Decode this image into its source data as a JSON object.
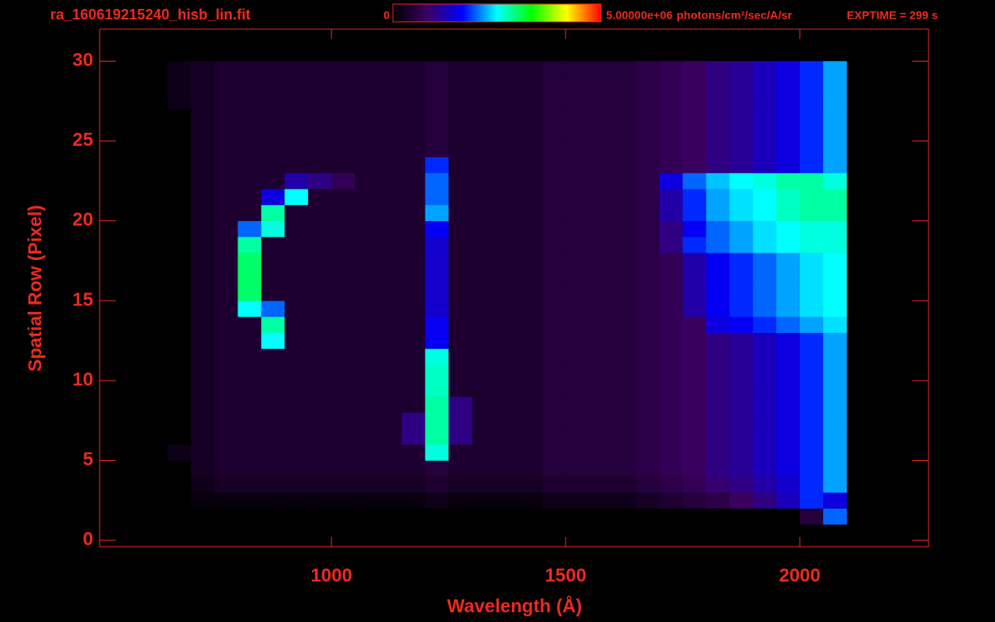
{
  "chart_data": {
    "type": "heatmap",
    "title": "ra_160619215240_hisb_lin.fit",
    "annotation": "EXPTIME = 299 s",
    "x_label": "Wavelength (Å)",
    "y_label": "Spatial Row (Pixel)",
    "colorbar_unit": "photons/cm²/sec/A/sr",
    "zlim": [
      0,
      5000000
    ],
    "zticks": [
      0,
      {
        "value": 5000000,
        "label": "5.00000e+06"
      }
    ],
    "colormap": [
      "#000000",
      "#3c0064",
      "#0000ff",
      "#00ffff",
      "#00ff00",
      "#ffff00",
      "#ff0000"
    ],
    "xlim": [
      505,
      2275
    ],
    "xticks": [
      1000,
      1500,
      2000
    ],
    "ylim": [
      -0.4,
      32
    ],
    "yticks": [
      0,
      5,
      10,
      15,
      20,
      25,
      30
    ],
    "xbins": [
      650,
      700,
      750,
      800,
      850,
      900,
      950,
      1000,
      1050,
      1100,
      1150,
      1200,
      1250,
      1300,
      1350,
      1400,
      1450,
      1500,
      1550,
      1600,
      1650,
      1700,
      1750,
      1800,
      1850,
      1900,
      1950,
      2000,
      2050,
      2100
    ],
    "ybins": [
      1,
      2,
      3,
      4,
      5,
      6,
      7,
      8,
      9,
      10,
      11,
      12,
      13,
      14,
      15,
      16,
      17,
      18,
      19,
      20,
      21,
      22,
      23,
      24,
      25,
      26,
      27,
      28,
      29,
      30
    ],
    "z": [
      [
        0,
        0,
        0,
        0,
        0,
        0,
        0,
        0,
        0,
        0,
        0,
        0,
        0,
        0,
        0,
        0,
        0,
        0,
        0,
        0,
        0,
        0,
        0,
        0,
        0,
        0,
        0,
        500000.0,
        2000000.0
      ],
      [
        0,
        100000.0,
        100000.0,
        100000.0,
        100000.0,
        100000.0,
        100000.0,
        100000.0,
        100000.0,
        100000.0,
        100000.0,
        200000.0,
        100000.0,
        100000.0,
        100000.0,
        100000.0,
        200000.0,
        200000.0,
        200000.0,
        200000.0,
        300000.0,
        400000.0,
        500000.0,
        600000.0,
        800000.0,
        1000000.0,
        1300000.0,
        1800000.0,
        1500000.0
      ],
      [
        0,
        200000.0,
        300000.0,
        300000.0,
        300000.0,
        300000.0,
        300000.0,
        300000.0,
        300000.0,
        300000.0,
        300000.0,
        400000.0,
        300000.0,
        300000.0,
        300000.0,
        300000.0,
        400000.0,
        400000.0,
        400000.0,
        400000.0,
        500000.0,
        600000.0,
        700000.0,
        900000.0,
        1000000.0,
        1200000.0,
        1400000.0,
        1800000.0,
        2200000.0
      ],
      [
        0,
        300000.0,
        400000.0,
        400000.0,
        400000.0,
        400000.0,
        400000.0,
        400000.0,
        400000.0,
        400000.0,
        400000.0,
        500000.0,
        400000.0,
        400000.0,
        400000.0,
        400000.0,
        500000.0,
        500000.0,
        500000.0,
        500000.0,
        600000.0,
        700000.0,
        800000.0,
        1000000.0,
        1100000.0,
        1300000.0,
        1500000.0,
        1800000.0,
        2200000.0
      ],
      [
        200000.0,
        300000.0,
        400000.0,
        400000.0,
        400000.0,
        400000.0,
        400000.0,
        400000.0,
        400000.0,
        400000.0,
        400000.0,
        2600000.0,
        400000.0,
        400000.0,
        400000.0,
        400000.0,
        500000.0,
        500000.0,
        500000.0,
        500000.0,
        600000.0,
        700000.0,
        800000.0,
        1000000.0,
        1100000.0,
        1300000.0,
        1500000.0,
        1800000.0,
        2200000.0
      ],
      [
        0,
        300000.0,
        400000.0,
        400000.0,
        400000.0,
        400000.0,
        400000.0,
        400000.0,
        400000.0,
        400000.0,
        1000000.0,
        2800000.0,
        1000000.0,
        400000.0,
        400000.0,
        400000.0,
        500000.0,
        500000.0,
        500000.0,
        500000.0,
        600000.0,
        700000.0,
        800000.0,
        1000000.0,
        1100000.0,
        1300000.0,
        1500000.0,
        1800000.0,
        2200000.0
      ],
      [
        0,
        300000.0,
        400000.0,
        400000.0,
        400000.0,
        400000.0,
        400000.0,
        400000.0,
        400000.0,
        400000.0,
        1000000.0,
        2800000.0,
        1000000.0,
        400000.0,
        400000.0,
        400000.0,
        500000.0,
        500000.0,
        500000.0,
        500000.0,
        600000.0,
        700000.0,
        800000.0,
        1000000.0,
        1100000.0,
        1300000.0,
        1500000.0,
        1800000.0,
        2200000.0
      ],
      [
        0,
        300000.0,
        400000.0,
        400000.0,
        400000.0,
        400000.0,
        400000.0,
        400000.0,
        400000.0,
        400000.0,
        400000.0,
        2800000.0,
        1000000.0,
        400000.0,
        400000.0,
        400000.0,
        500000.0,
        500000.0,
        500000.0,
        500000.0,
        600000.0,
        700000.0,
        800000.0,
        1000000.0,
        1100000.0,
        1300000.0,
        1500000.0,
        1800000.0,
        2200000.0
      ],
      [
        0,
        300000.0,
        400000.0,
        400000.0,
        400000.0,
        400000.0,
        400000.0,
        400000.0,
        400000.0,
        400000.0,
        400000.0,
        2700000.0,
        400000.0,
        400000.0,
        400000.0,
        400000.0,
        500000.0,
        500000.0,
        500000.0,
        500000.0,
        600000.0,
        700000.0,
        800000.0,
        1000000.0,
        1100000.0,
        1300000.0,
        1500000.0,
        1800000.0,
        2200000.0
      ],
      [
        0,
        300000.0,
        400000.0,
        400000.0,
        400000.0,
        400000.0,
        400000.0,
        400000.0,
        400000.0,
        400000.0,
        400000.0,
        2700000.0,
        400000.0,
        400000.0,
        400000.0,
        400000.0,
        500000.0,
        500000.0,
        500000.0,
        500000.0,
        600000.0,
        700000.0,
        800000.0,
        1000000.0,
        1100000.0,
        1300000.0,
        1500000.0,
        1800000.0,
        2200000.0
      ],
      [
        0,
        300000.0,
        400000.0,
        400000.0,
        400000.0,
        400000.0,
        400000.0,
        400000.0,
        400000.0,
        400000.0,
        400000.0,
        2600000.0,
        400000.0,
        400000.0,
        400000.0,
        400000.0,
        500000.0,
        500000.0,
        500000.0,
        500000.0,
        600000.0,
        700000.0,
        800000.0,
        1000000.0,
        1100000.0,
        1300000.0,
        1500000.0,
        1800000.0,
        2200000.0
      ],
      [
        0,
        300000.0,
        400000.0,
        400000.0,
        2500000.0,
        400000.0,
        400000.0,
        400000.0,
        400000.0,
        400000.0,
        400000.0,
        1600000.0,
        400000.0,
        400000.0,
        400000.0,
        400000.0,
        500000.0,
        500000.0,
        500000.0,
        500000.0,
        600000.0,
        700000.0,
        800000.0,
        1000000.0,
        1100000.0,
        1300000.0,
        1500000.0,
        1800000.0,
        2200000.0
      ],
      [
        0,
        300000.0,
        400000.0,
        400000.0,
        2800000.0,
        400000.0,
        400000.0,
        400000.0,
        400000.0,
        400000.0,
        400000.0,
        1600000.0,
        400000.0,
        400000.0,
        400000.0,
        400000.0,
        500000.0,
        500000.0,
        500000.0,
        500000.0,
        600000.0,
        700000.0,
        800000.0,
        1500000.0,
        1600000.0,
        1800000.0,
        2000000.0,
        2200000.0,
        2400000.0
      ],
      [
        0,
        300000.0,
        400000.0,
        2500000.0,
        2000000.0,
        400000.0,
        400000.0,
        400000.0,
        400000.0,
        400000.0,
        400000.0,
        1400000.0,
        400000.0,
        400000.0,
        400000.0,
        400000.0,
        500000.0,
        500000.0,
        500000.0,
        500000.0,
        600000.0,
        700000.0,
        1200000.0,
        1600000.0,
        1800000.0,
        2000000.0,
        2200000.0,
        2400000.0,
        2500000.0
      ],
      [
        0,
        300000.0,
        400000.0,
        3000000.0,
        400000.0,
        400000.0,
        400000.0,
        400000.0,
        400000.0,
        400000.0,
        400000.0,
        1400000.0,
        400000.0,
        400000.0,
        400000.0,
        400000.0,
        500000.0,
        500000.0,
        500000.0,
        500000.0,
        600000.0,
        700000.0,
        1200000.0,
        1600000.0,
        1800000.0,
        2000000.0,
        2200000.0,
        2400000.0,
        2500000.0
      ],
      [
        0,
        300000.0,
        400000.0,
        3000000.0,
        400000.0,
        400000.0,
        400000.0,
        400000.0,
        400000.0,
        400000.0,
        400000.0,
        1400000.0,
        400000.0,
        400000.0,
        400000.0,
        400000.0,
        500000.0,
        500000.0,
        500000.0,
        500000.0,
        600000.0,
        700000.0,
        1200000.0,
        1600000.0,
        1800000.0,
        2000000.0,
        2200000.0,
        2400000.0,
        2500000.0
      ],
      [
        0,
        300000.0,
        400000.0,
        3000000.0,
        400000.0,
        400000.0,
        400000.0,
        400000.0,
        400000.0,
        400000.0,
        400000.0,
        1400000.0,
        400000.0,
        400000.0,
        400000.0,
        400000.0,
        500000.0,
        500000.0,
        500000.0,
        500000.0,
        600000.0,
        700000.0,
        1200000.0,
        1600000.0,
        1800000.0,
        2000000.0,
        2200000.0,
        2400000.0,
        2500000.0
      ],
      [
        0,
        300000.0,
        400000.0,
        2800000.0,
        400000.0,
        400000.0,
        400000.0,
        400000.0,
        400000.0,
        400000.0,
        400000.0,
        1400000.0,
        400000.0,
        400000.0,
        400000.0,
        400000.0,
        500000.0,
        500000.0,
        500000.0,
        500000.0,
        600000.0,
        1000000.0,
        1800000.0,
        2000000.0,
        2200000.0,
        2400000.0,
        2500000.0,
        2600000.0,
        2600000.0
      ],
      [
        0,
        300000.0,
        400000.0,
        2000000.0,
        2600000.0,
        400000.0,
        400000.0,
        400000.0,
        400000.0,
        400000.0,
        400000.0,
        1600000.0,
        400000.0,
        400000.0,
        400000.0,
        400000.0,
        500000.0,
        500000.0,
        500000.0,
        500000.0,
        600000.0,
        1000000.0,
        1600000.0,
        2000000.0,
        2200000.0,
        2400000.0,
        2500000.0,
        2600000.0,
        2600000.0
      ],
      [
        0,
        300000.0,
        400000.0,
        400000.0,
        2800000.0,
        400000.0,
        400000.0,
        400000.0,
        400000.0,
        400000.0,
        400000.0,
        2200000.0,
        400000.0,
        400000.0,
        400000.0,
        400000.0,
        500000.0,
        500000.0,
        500000.0,
        500000.0,
        600000.0,
        1200000.0,
        1800000.0,
        2200000.0,
        2400000.0,
        2500000.0,
        2700000.0,
        2800000.0,
        2800000.0
      ],
      [
        0,
        300000.0,
        400000.0,
        400000.0,
        1500000.0,
        2500000.0,
        400000.0,
        400000.0,
        400000.0,
        400000.0,
        400000.0,
        2000000.0,
        400000.0,
        400000.0,
        400000.0,
        400000.0,
        500000.0,
        500000.0,
        500000.0,
        500000.0,
        600000.0,
        1200000.0,
        1800000.0,
        2200000.0,
        2400000.0,
        2500000.0,
        2700000.0,
        2800000.0,
        2800000.0
      ],
      [
        0,
        300000.0,
        400000.0,
        400000.0,
        400000.0,
        1200000.0,
        1000000.0,
        700000.0,
        400000.0,
        400000.0,
        400000.0,
        2000000.0,
        400000.0,
        400000.0,
        400000.0,
        400000.0,
        500000.0,
        500000.0,
        500000.0,
        500000.0,
        600000.0,
        1500000.0,
        2000000.0,
        2300000.0,
        2500000.0,
        2600000.0,
        2800000.0,
        2800000.0,
        2600000.0
      ],
      [
        0,
        300000.0,
        400000.0,
        400000.0,
        400000.0,
        400000.0,
        400000.0,
        400000.0,
        400000.0,
        400000.0,
        400000.0,
        1800000.0,
        400000.0,
        400000.0,
        400000.0,
        400000.0,
        500000.0,
        500000.0,
        500000.0,
        500000.0,
        600000.0,
        700000.0,
        800000.0,
        1000000.0,
        1100000.0,
        1300000.0,
        1500000.0,
        1800000.0,
        2200000.0
      ],
      [
        0,
        300000.0,
        400000.0,
        400000.0,
        400000.0,
        400000.0,
        400000.0,
        400000.0,
        400000.0,
        400000.0,
        400000.0,
        500000.0,
        400000.0,
        400000.0,
        400000.0,
        400000.0,
        500000.0,
        500000.0,
        500000.0,
        500000.0,
        600000.0,
        700000.0,
        800000.0,
        1000000.0,
        1100000.0,
        1300000.0,
        1500000.0,
        1800000.0,
        2200000.0
      ],
      [
        0,
        300000.0,
        400000.0,
        400000.0,
        400000.0,
        400000.0,
        400000.0,
        400000.0,
        400000.0,
        400000.0,
        400000.0,
        500000.0,
        400000.0,
        400000.0,
        400000.0,
        400000.0,
        500000.0,
        500000.0,
        500000.0,
        500000.0,
        600000.0,
        700000.0,
        800000.0,
        1000000.0,
        1100000.0,
        1300000.0,
        1500000.0,
        1800000.0,
        2200000.0
      ],
      [
        0,
        300000.0,
        400000.0,
        400000.0,
        400000.0,
        400000.0,
        400000.0,
        400000.0,
        400000.0,
        400000.0,
        400000.0,
        500000.0,
        400000.0,
        400000.0,
        400000.0,
        400000.0,
        500000.0,
        500000.0,
        500000.0,
        500000.0,
        600000.0,
        700000.0,
        800000.0,
        1000000.0,
        1100000.0,
        1300000.0,
        1500000.0,
        1800000.0,
        2200000.0
      ],
      [
        200000.0,
        300000.0,
        400000.0,
        400000.0,
        400000.0,
        400000.0,
        400000.0,
        400000.0,
        400000.0,
        400000.0,
        400000.0,
        500000.0,
        400000.0,
        400000.0,
        400000.0,
        400000.0,
        500000.0,
        500000.0,
        500000.0,
        500000.0,
        600000.0,
        700000.0,
        800000.0,
        1000000.0,
        1100000.0,
        1300000.0,
        1500000.0,
        1800000.0,
        2200000.0
      ],
      [
        200000.0,
        300000.0,
        400000.0,
        400000.0,
        400000.0,
        400000.0,
        400000.0,
        400000.0,
        400000.0,
        400000.0,
        400000.0,
        500000.0,
        400000.0,
        400000.0,
        400000.0,
        400000.0,
        500000.0,
        500000.0,
        500000.0,
        500000.0,
        600000.0,
        700000.0,
        800000.0,
        1000000.0,
        1100000.0,
        1300000.0,
        1500000.0,
        1800000.0,
        2200000.0
      ],
      [
        200000.0,
        300000.0,
        400000.0,
        400000.0,
        400000.0,
        400000.0,
        400000.0,
        400000.0,
        400000.0,
        400000.0,
        400000.0,
        500000.0,
        400000.0,
        400000.0,
        400000.0,
        400000.0,
        500000.0,
        500000.0,
        500000.0,
        500000.0,
        600000.0,
        700000.0,
        800000.0,
        1000000.0,
        1100000.0,
        1300000.0,
        1500000.0,
        1800000.0,
        2200000.0
      ]
    ]
  }
}
